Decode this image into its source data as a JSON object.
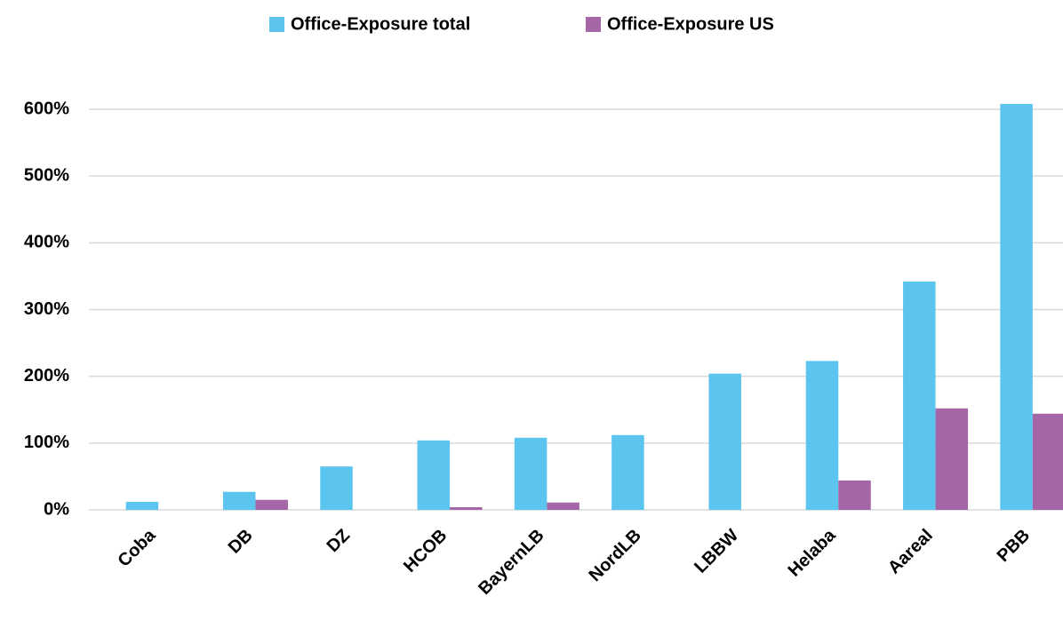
{
  "chart_data": {
    "type": "bar",
    "categories": [
      "Coba",
      "DB",
      "DZ",
      "HCOB",
      "BayernLB",
      "NordLB",
      "LBBW",
      "Helaba",
      "Aareal",
      "PBB"
    ],
    "series": [
      {
        "name": "Office-Exposure total",
        "color": "#5bc5f0",
        "values": [
          12,
          27,
          65,
          104,
          108,
          112,
          204,
          223,
          342,
          608
        ]
      },
      {
        "name": "Office-Exposure US",
        "color": "#a566a8",
        "values": [
          0,
          15,
          0,
          4,
          11,
          0,
          0,
          44,
          152,
          144
        ]
      }
    ],
    "ylim": [
      0,
      600
    ],
    "yticks": [
      {
        "value": 0,
        "label": "0%"
      },
      {
        "value": 100,
        "label": "100%"
      },
      {
        "value": 200,
        "label": "200%"
      },
      {
        "value": 300,
        "label": "300%"
      },
      {
        "value": 400,
        "label": "400%"
      },
      {
        "value": 500,
        "label": "500%"
      },
      {
        "value": 600,
        "label": "600%"
      }
    ],
    "grid": true,
    "legend": "top"
  }
}
